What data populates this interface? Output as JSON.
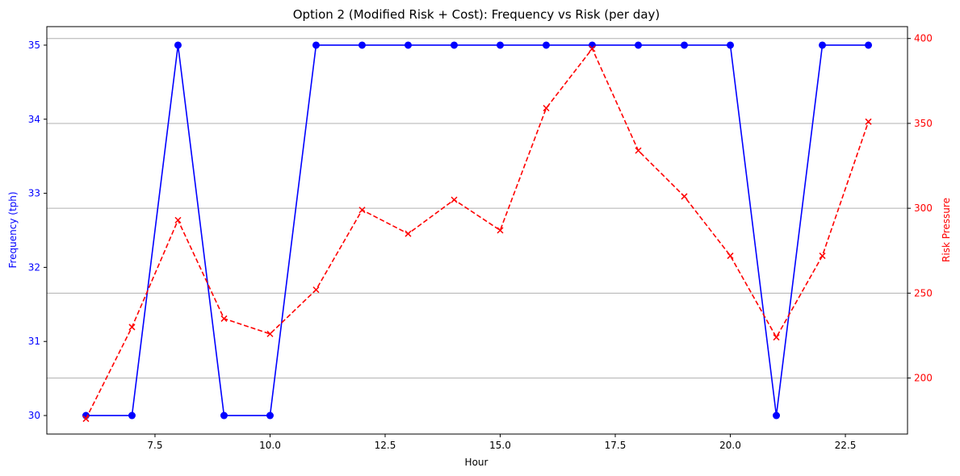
{
  "chart_data": {
    "type": "line",
    "title": "Option 2 (Modified Risk + Cost): Frequency vs Risk (per day)",
    "xlabel": "Hour",
    "ylabel_left": "Frequency (tph)",
    "ylabel_right": "Risk Pressure",
    "xlim": [
      5.15,
      23.85
    ],
    "ylim_left": [
      29.75,
      35.25
    ],
    "ylim_right": [
      167,
      407
    ],
    "x_ticks": [
      7.5,
      10.0,
      12.5,
      15.0,
      17.5,
      20.0,
      22.5
    ],
    "x_tick_labels": [
      "7.5",
      "10.0",
      "12.5",
      "15.0",
      "17.5",
      "20.0",
      "22.5"
    ],
    "y_left_ticks": [
      30,
      31,
      32,
      33,
      34,
      35
    ],
    "y_left_tick_labels": [
      "30",
      "31",
      "32",
      "33",
      "34",
      "35"
    ],
    "y_right_ticks": [
      200,
      250,
      300,
      350,
      400
    ],
    "y_right_tick_labels": [
      "200",
      "250",
      "300",
      "350",
      "400"
    ],
    "grid": "horizontal lines at right-axis ticks",
    "x": [
      6,
      7,
      8,
      9,
      10,
      11,
      12,
      13,
      14,
      15,
      16,
      17,
      18,
      19,
      20,
      21,
      22,
      23
    ],
    "series": [
      {
        "axis": "left",
        "color": "#0000ff",
        "line_style": "solid",
        "marker": "circle",
        "values": [
          30,
          30,
          35,
          30,
          30,
          35,
          35,
          35,
          35,
          35,
          35,
          35,
          35,
          35,
          35,
          30,
          35,
          35
        ]
      },
      {
        "axis": "right",
        "color": "#ff0000",
        "line_style": "dashed",
        "marker": "x",
        "values": [
          176,
          230,
          293,
          235,
          226,
          252,
          299,
          285,
          305,
          287,
          359,
          394,
          334,
          307,
          272,
          224,
          272,
          351
        ]
      }
    ],
    "colors": {
      "left_axis": "#0000ff",
      "right_axis": "#ff0000",
      "grid": "#b0b0b0",
      "frame": "#000000"
    }
  }
}
